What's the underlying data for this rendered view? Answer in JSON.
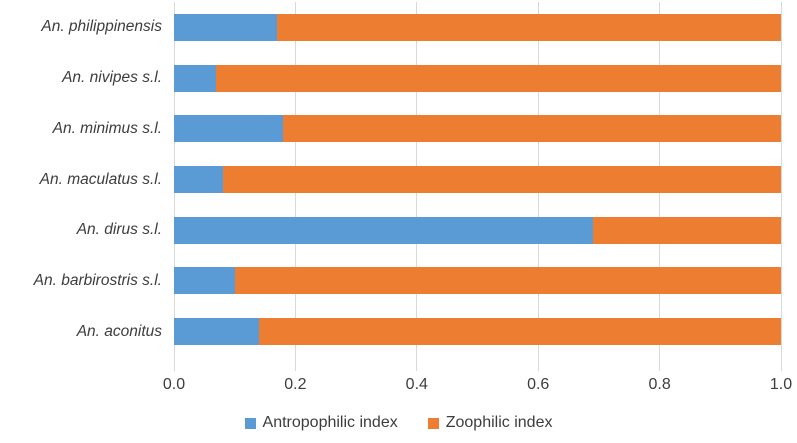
{
  "chart_data": {
    "type": "bar",
    "orientation": "horizontal",
    "stacked": true,
    "title": "",
    "xlabel": "",
    "ylabel": "",
    "categories_top_to_bottom": [
      "An. philippinensis",
      "An. nivipes s.l.",
      "An. minimus s.l.",
      "An. maculatus s.l.",
      "An. dirus s.l.",
      "An. barbirostris s.l.",
      "An. aconitus"
    ],
    "series": [
      {
        "name": "Antropophilic index",
        "color": "#5B9BD5",
        "values": [
          0.17,
          0.07,
          0.18,
          0.08,
          0.69,
          0.1,
          0.14
        ]
      },
      {
        "name": "Zoophilic index",
        "color": "#ED7D31",
        "values": [
          0.83,
          0.93,
          0.82,
          0.92,
          0.31,
          0.9,
          0.86
        ]
      }
    ],
    "xlim": [
      0,
      1.0
    ],
    "x_tick_values": [
      0,
      0.2,
      0.4,
      0.6,
      0.8,
      1.0
    ],
    "x_tick_labels": [
      "0.0",
      "0.2",
      "0.4",
      "0.6",
      "0.8",
      "1.0"
    ],
    "grid": "vertical",
    "gridline_color": "#D9D9D9",
    "text_color": "#3d3d3d",
    "legend_position": "bottom-center",
    "category_label_style": "italic"
  }
}
